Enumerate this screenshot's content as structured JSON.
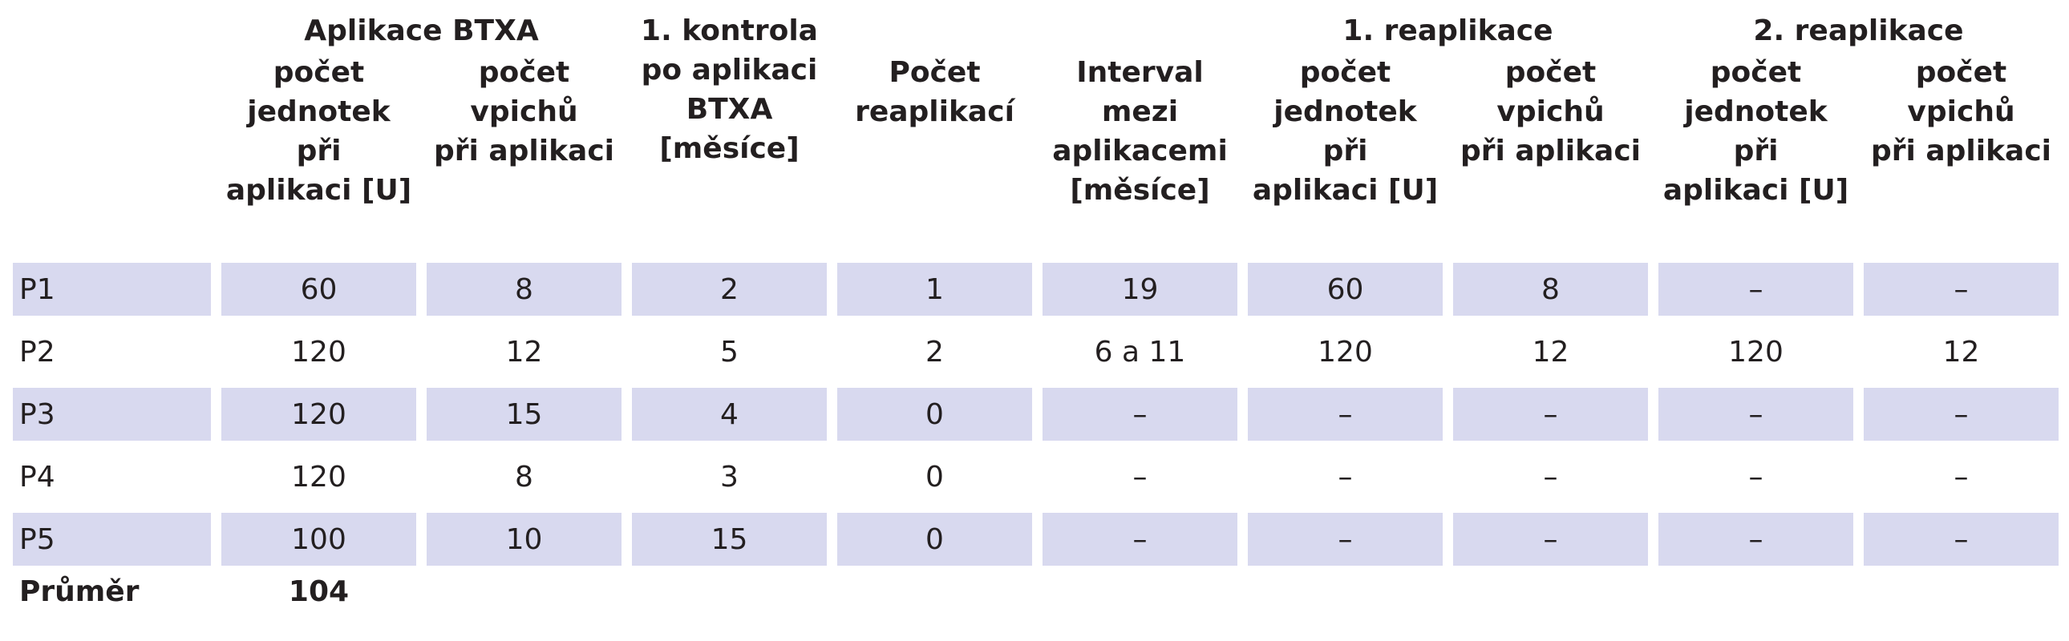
{
  "table": {
    "group_headers": [
      "Aplikace BTXA",
      "1. kontrola\npo aplikaci\nBTXA\n[měsíce]",
      "1. reaplikace",
      "2. reaplikace"
    ],
    "sub_headers": [
      "počet\njednotek\npři\naplikaci [U]",
      "počet\nvpichů\npři aplikaci",
      "Počet\nreaplikací",
      "Interval\nmezi\naplikacemi\n[měsíce]",
      "počet\njednotek\npři\naplikaci [U]",
      "počet\nvpichů\npři aplikaci",
      "počet\njednotek\npři\naplikaci [U]",
      "počet\nvpichů\npři aplikaci"
    ],
    "rows": [
      [
        "P1",
        "60",
        "8",
        "2",
        "1",
        "19",
        "60",
        "8",
        "–",
        "–"
      ],
      [
        "P2",
        "120",
        "12",
        "5",
        "2",
        "6 a 11",
        "120",
        "12",
        "120",
        "12"
      ],
      [
        "P3",
        "120",
        "15",
        "4",
        "0",
        "–",
        "–",
        "–",
        "–",
        "–"
      ],
      [
        "P4",
        "120",
        "8",
        "3",
        "0",
        "–",
        "–",
        "–",
        "–",
        "–"
      ],
      [
        "P5",
        "100",
        "10",
        "15",
        "0",
        "–",
        "–",
        "–",
        "–",
        "–"
      ]
    ],
    "average": {
      "label": "Průměr",
      "value": "104"
    }
  }
}
